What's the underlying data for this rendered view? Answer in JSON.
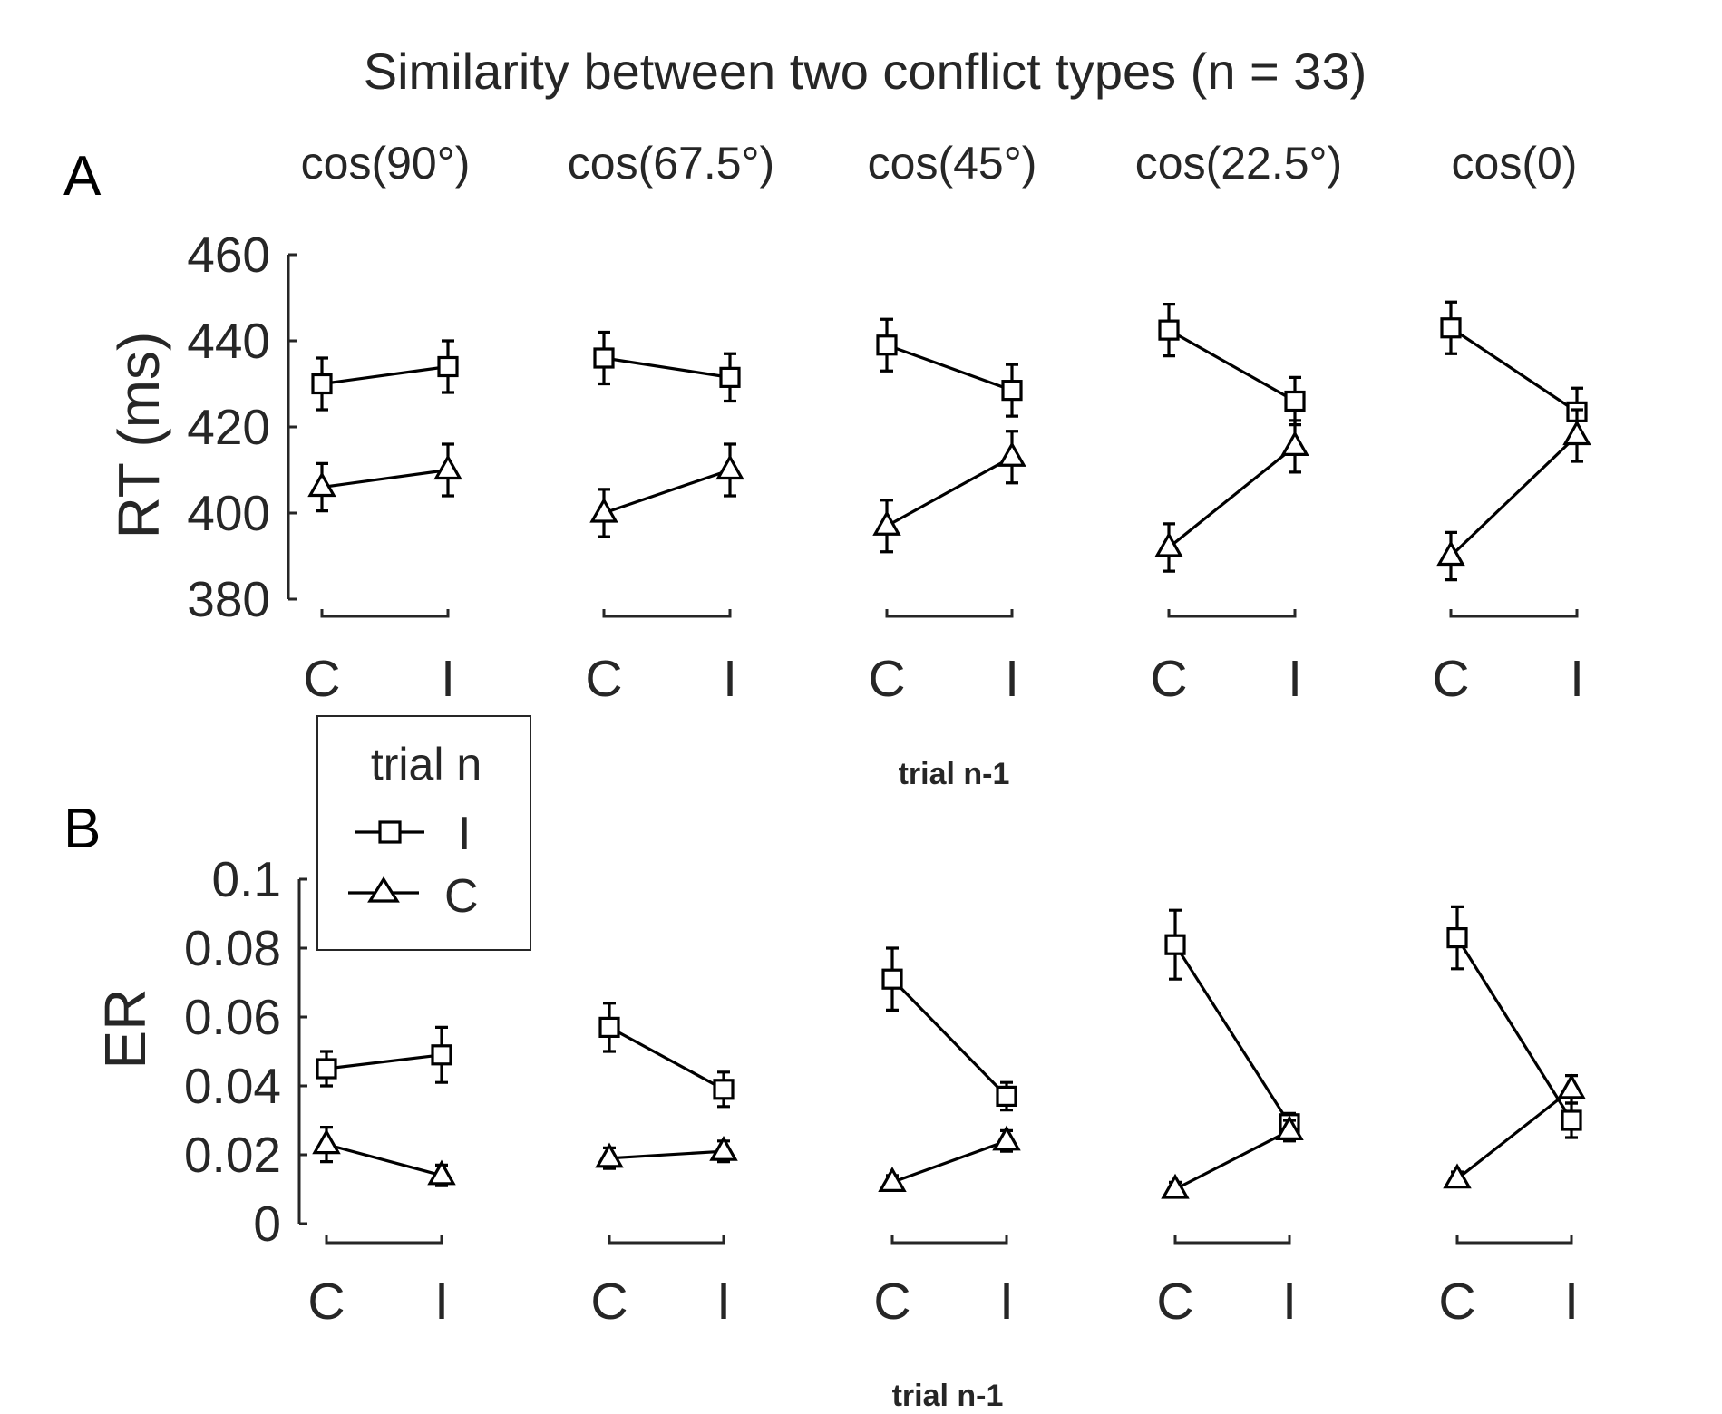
{
  "title": "Similarity between two conflict types (n = 33)",
  "conditions": [
    "cos(90°)",
    "cos(67.5°)",
    "cos(45°)",
    "cos(22.5°)",
    "cos(0)"
  ],
  "legend": {
    "title": "trial n",
    "entries": [
      {
        "label": "I",
        "marker": "square-marker"
      },
      {
        "label": "C",
        "marker": "triangle-marker"
      }
    ]
  },
  "chart_data": [
    {
      "panel": "A",
      "type": "line",
      "ylabel": "RT (ms)",
      "xlabel": "trial n-1",
      "ylim": [
        380,
        460
      ],
      "yticks": [
        "380",
        "400",
        "420",
        "440",
        "460"
      ],
      "ytick_values": [
        380,
        400,
        420,
        440,
        460
      ],
      "categories": [
        "C",
        "I"
      ],
      "groups": [
        {
          "condition": "cos(90°)",
          "series": [
            {
              "name": "I",
              "values": [
                430,
                434
              ],
              "errors": [
                6,
                6
              ]
            },
            {
              "name": "C",
              "values": [
                406,
                410
              ],
              "errors": [
                5.5,
                6
              ]
            }
          ]
        },
        {
          "condition": "cos(67.5°)",
          "series": [
            {
              "name": "I",
              "values": [
                436,
                431.5
              ],
              "errors": [
                6,
                5.5
              ]
            },
            {
              "name": "C",
              "values": [
                400,
                410
              ],
              "errors": [
                5.5,
                6
              ]
            }
          ]
        },
        {
          "condition": "cos(45°)",
          "series": [
            {
              "name": "I",
              "values": [
                439,
                428.5
              ],
              "errors": [
                6,
                6
              ]
            },
            {
              "name": "C",
              "values": [
                397,
                413
              ],
              "errors": [
                6,
                6
              ]
            }
          ]
        },
        {
          "condition": "cos(22.5°)",
          "series": [
            {
              "name": "I",
              "values": [
                442.5,
                426
              ],
              "errors": [
                6,
                5.5
              ]
            },
            {
              "name": "C",
              "values": [
                392,
                415.5
              ],
              "errors": [
                5.5,
                6
              ]
            }
          ]
        },
        {
          "condition": "cos(0)",
          "series": [
            {
              "name": "I",
              "values": [
                443,
                423.5
              ],
              "errors": [
                6,
                5.5
              ]
            },
            {
              "name": "C",
              "values": [
                390,
                418
              ],
              "errors": [
                5.5,
                6
              ]
            }
          ]
        }
      ]
    },
    {
      "panel": "B",
      "type": "line",
      "ylabel": "ER",
      "xlabel": "trial n-1",
      "ylim": [
        0,
        0.1
      ],
      "yticks": [
        "0",
        "0.02",
        "0.04",
        "0.06",
        "0.08",
        "0.1"
      ],
      "ytick_values": [
        0,
        0.02,
        0.04,
        0.06,
        0.08,
        0.1
      ],
      "categories": [
        "C",
        "I"
      ],
      "groups": [
        {
          "condition": "cos(90°)",
          "series": [
            {
              "name": "I",
              "values": [
                0.045,
                0.049
              ],
              "errors": [
                0.005,
                0.008
              ]
            },
            {
              "name": "C",
              "values": [
                0.023,
                0.014
              ],
              "errors": [
                0.005,
                0.003
              ]
            }
          ]
        },
        {
          "condition": "cos(67.5°)",
          "series": [
            {
              "name": "I",
              "values": [
                0.057,
                0.039
              ],
              "errors": [
                0.007,
                0.005
              ]
            },
            {
              "name": "C",
              "values": [
                0.019,
                0.021
              ],
              "errors": [
                0.003,
                0.003
              ]
            }
          ]
        },
        {
          "condition": "cos(45°)",
          "series": [
            {
              "name": "I",
              "values": [
                0.071,
                0.037
              ],
              "errors": [
                0.009,
                0.004
              ]
            },
            {
              "name": "C",
              "values": [
                0.012,
                0.024
              ],
              "errors": [
                0.002,
                0.003
              ]
            }
          ]
        },
        {
          "condition": "cos(22.5°)",
          "series": [
            {
              "name": "I",
              "values": [
                0.081,
                0.029
              ],
              "errors": [
                0.01,
                0.003
              ]
            },
            {
              "name": "C",
              "values": [
                0.01,
                0.027
              ],
              "errors": [
                0.002,
                0.003
              ]
            }
          ]
        },
        {
          "condition": "cos(0)",
          "series": [
            {
              "name": "I",
              "values": [
                0.083,
                0.03
              ],
              "errors": [
                0.009,
                0.005
              ]
            },
            {
              "name": "C",
              "values": [
                0.013,
                0.039
              ],
              "errors": [
                0.002,
                0.004
              ]
            }
          ]
        }
      ]
    }
  ]
}
